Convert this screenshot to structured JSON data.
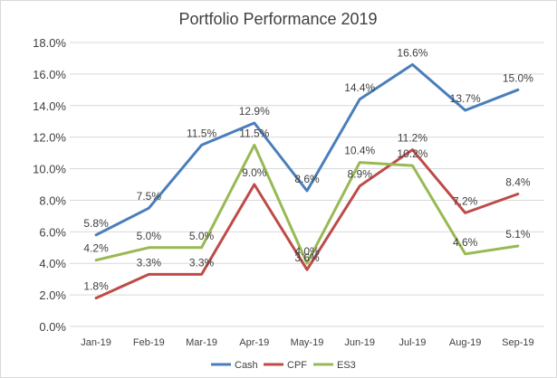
{
  "chart_data": {
    "type": "line",
    "title": "Portfolio Performance 2019",
    "xlabel": "",
    "ylabel": "",
    "categories": [
      "Jan-19",
      "Feb-19",
      "Mar-19",
      "Apr-19",
      "May-19",
      "Jun-19",
      "Jul-19",
      "Aug-19",
      "Sep-19"
    ],
    "ylim": [
      0,
      18
    ],
    "y_ticks": [
      "0.0%",
      "2.0%",
      "4.0%",
      "6.0%",
      "8.0%",
      "10.0%",
      "12.0%",
      "14.0%",
      "16.0%",
      "18.0%"
    ],
    "y_tick_values": [
      0,
      2,
      4,
      6,
      8,
      10,
      12,
      14,
      16,
      18
    ],
    "grid": true,
    "legend_position": "bottom",
    "series": [
      {
        "name": "Cash",
        "color": "#4a7ebb",
        "values": [
          5.8,
          7.5,
          11.5,
          12.9,
          8.6,
          14.4,
          16.6,
          13.7,
          15.0
        ],
        "labels": [
          "5.8%",
          "7.5%",
          "11.5%",
          "12.9%",
          "8.6%",
          "14.4%",
          "16.6%",
          "13.7%",
          "15.0%"
        ]
      },
      {
        "name": "CPF",
        "color": "#be4b48",
        "values": [
          1.8,
          3.3,
          3.3,
          9.0,
          3.6,
          8.9,
          11.2,
          7.2,
          8.4
        ],
        "labels": [
          "1.8%",
          "3.3%",
          "3.3%",
          "9.0%",
          "3.6%",
          "8.9%",
          "11.2%",
          "7.2%",
          "8.4%"
        ]
      },
      {
        "name": "ES3",
        "color": "#98b954",
        "values": [
          4.2,
          5.0,
          5.0,
          11.5,
          4.0,
          10.4,
          10.2,
          4.6,
          5.1
        ],
        "labels": [
          "4.2%",
          "5.0%",
          "5.0%",
          "11.5%",
          "4.0%",
          "10.4%",
          "10.2%",
          "4.6%",
          "5.1%"
        ]
      }
    ]
  }
}
